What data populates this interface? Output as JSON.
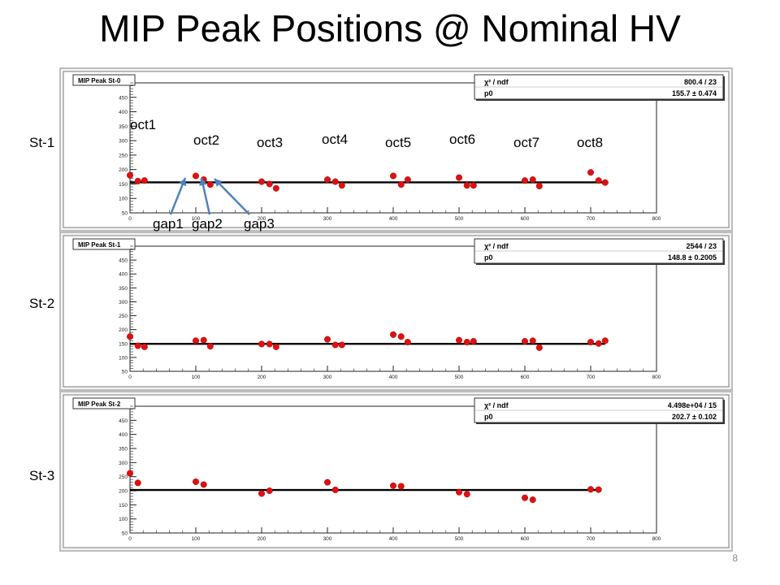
{
  "slide": {
    "title": "MIP Peak Positions @ Nominal HV",
    "page_number": "8"
  },
  "annotations": {
    "octants": [
      "oct1",
      "oct2",
      "oct3",
      "oct4",
      "oct5",
      "oct6",
      "oct7",
      "oct8"
    ],
    "gaps": [
      "gap1",
      "gap2",
      "gap3"
    ],
    "stations": [
      "St-1",
      "St-2",
      "St-3"
    ]
  },
  "colors": {
    "marker": "#e01010",
    "fit_line": "#000000",
    "frame": "#bdbdbd",
    "inner_frame": "#7a7a7a"
  },
  "chart_data": [
    {
      "type": "scatter",
      "title": "MIP Peak St-0",
      "stats": {
        "chi2_label": "χ² / ndf",
        "chi2_value": "800.4 / 23",
        "p0_label": "p0",
        "p0_value": "155.7 ± 0.474"
      },
      "fit": 155.7,
      "xlim": [
        0,
        800
      ],
      "ylim": [
        50,
        500
      ],
      "xticks": [
        "0",
        "100",
        "200",
        "300",
        "400",
        "500",
        "600",
        "700",
        "800"
      ],
      "yticks": [
        "50",
        "100",
        "150",
        "200",
        "250",
        "300",
        "350",
        "400",
        "450"
      ],
      "x": [
        0,
        12,
        22,
        100,
        112,
        122,
        200,
        212,
        222,
        300,
        312,
        322,
        400,
        412,
        422,
        500,
        512,
        522,
        600,
        612,
        622,
        700,
        712,
        722
      ],
      "y": [
        180,
        160,
        162,
        178,
        165,
        148,
        158,
        150,
        135,
        165,
        158,
        145,
        178,
        148,
        165,
        172,
        145,
        145,
        162,
        165,
        143,
        190,
        162,
        155
      ]
    },
    {
      "type": "scatter",
      "title": "MIP Peak St-1",
      "stats": {
        "chi2_label": "χ² / ndf",
        "chi2_value": "2544 / 23",
        "p0_label": "p0",
        "p0_value": "148.8 ± 0.2005"
      },
      "fit": 148.8,
      "xlim": [
        0,
        800
      ],
      "ylim": [
        50,
        500
      ],
      "xticks": [
        "0",
        "100",
        "200",
        "300",
        "400",
        "500",
        "600",
        "700",
        "800"
      ],
      "yticks": [
        "50",
        "100",
        "150",
        "200",
        "250",
        "300",
        "350",
        "400",
        "450"
      ],
      "x": [
        0,
        12,
        22,
        100,
        112,
        122,
        200,
        212,
        222,
        300,
        312,
        322,
        400,
        412,
        422,
        500,
        512,
        522,
        600,
        612,
        622,
        700,
        712,
        722
      ],
      "y": [
        175,
        142,
        138,
        160,
        162,
        140,
        148,
        148,
        138,
        165,
        145,
        145,
        182,
        175,
        155,
        162,
        155,
        158,
        158,
        160,
        135,
        155,
        150,
        160
      ]
    },
    {
      "type": "scatter",
      "title": "MIP Peak St-2",
      "stats": {
        "chi2_label": "χ² / ndf",
        "chi2_value": "4.498e+04 / 15",
        "p0_label": "p0",
        "p0_value": "202.7 ± 0.102"
      },
      "fit": 202.7,
      "xlim": [
        0,
        800
      ],
      "ylim": [
        50,
        500
      ],
      "xticks": [
        "0",
        "100",
        "200",
        "300",
        "400",
        "500",
        "600",
        "700",
        "800"
      ],
      "yticks": [
        "50",
        "100",
        "150",
        "200",
        "250",
        "300",
        "350",
        "400",
        "450"
      ],
      "x": [
        0,
        12,
        100,
        112,
        200,
        212,
        300,
        312,
        400,
        412,
        500,
        512,
        600,
        612,
        700,
        712
      ],
      "y": [
        262,
        228,
        232,
        222,
        190,
        200,
        230,
        203,
        218,
        216,
        195,
        188,
        175,
        168,
        205,
        204
      ]
    }
  ]
}
